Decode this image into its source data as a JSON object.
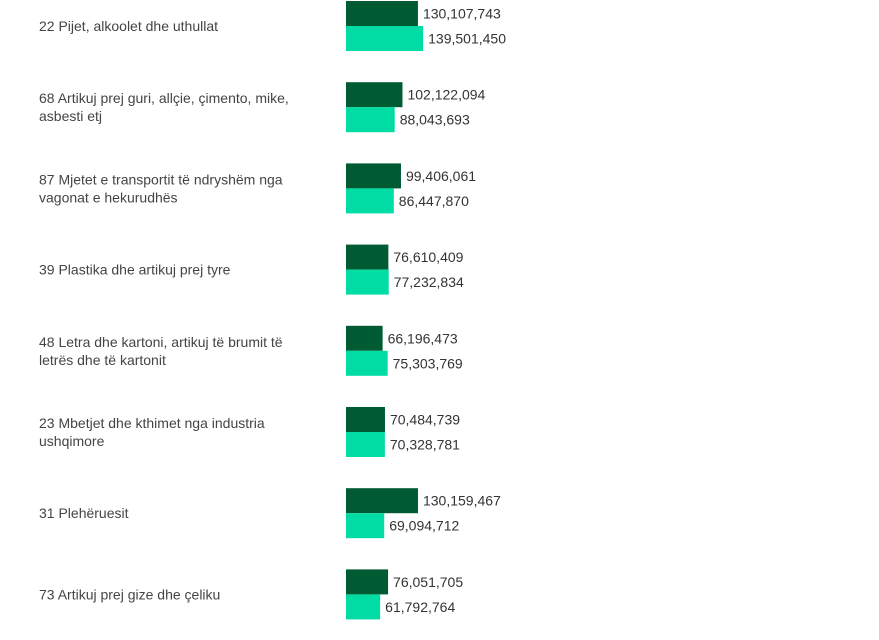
{
  "chart_data": {
    "type": "bar",
    "orientation": "horizontal",
    "title": "",
    "xlabel": "",
    "ylabel": "",
    "grid": false,
    "legend": "none",
    "xlim": [
      0,
      1000000000
    ],
    "categories": [
      [
        "22 Pijet, alkoolet dhe uthullat"
      ],
      [
        "68 Artikuj prej guri, allçie, çimento, mike,",
        "asbesti etj"
      ],
      [
        "87 Mjetet e transportit të ndryshëm nga",
        "vagonat e hekurudhës"
      ],
      [
        "39 Plastika dhe artikuj prej tyre"
      ],
      [
        "48 Letra dhe kartoni, artikuj të brumit të",
        "letrës dhe të kartonit"
      ],
      [
        "23 Mbetjet dhe kthimet nga industria",
        "ushqimore"
      ],
      [
        "31 Plehëruesit"
      ],
      [
        "73 Artikuj prej gize dhe çeliku"
      ]
    ],
    "series": [
      {
        "color": "#005a32",
        "values": [
          130107743,
          102122094,
          99406061,
          76610409,
          66196473,
          70484739,
          130159467,
          76051705
        ],
        "labels": [
          "130,107,743",
          "102,122,094",
          "99,406,061",
          "76,610,409",
          "66,196,473",
          "70,484,739",
          "130,159,467",
          "76,051,705"
        ]
      },
      {
        "color": "#00dca4",
        "values": [
          139501450,
          88043693,
          86447870,
          77232834,
          75303769,
          70328781,
          69094712,
          61792764
        ],
        "labels": [
          "139,501,450",
          "88,043,693",
          "86,447,870",
          "77,232,834",
          "75,303,769",
          "70,328,781",
          "69,094,712",
          "61,792,764"
        ]
      }
    ]
  }
}
